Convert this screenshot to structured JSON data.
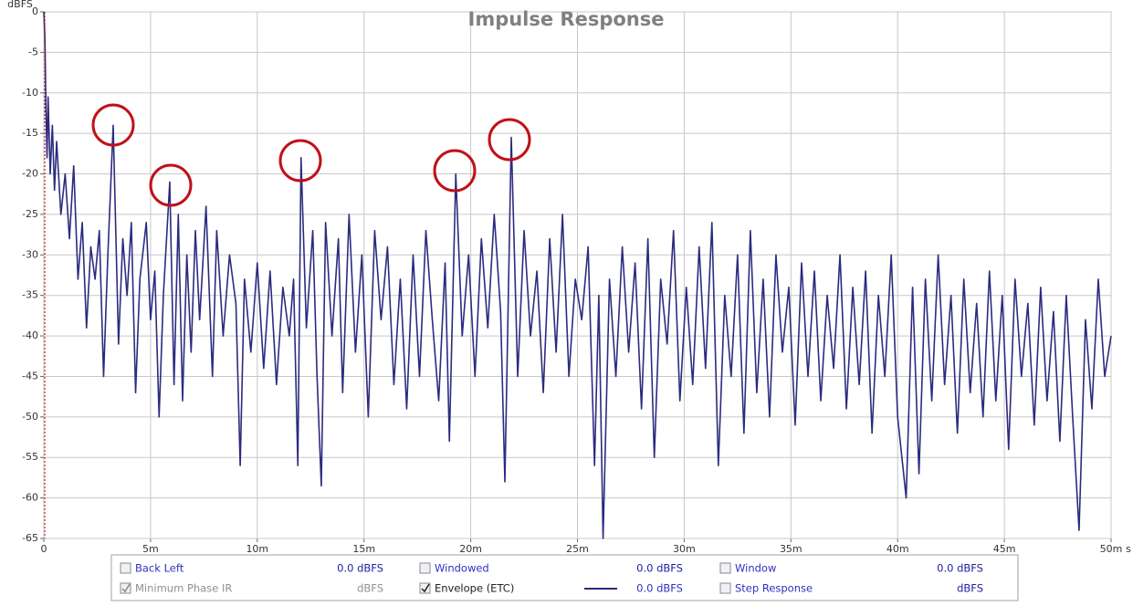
{
  "chart_data": {
    "type": "line",
    "title": "Impulse Response",
    "y_label": "dBFS",
    "x_label": "s",
    "xlim": [
      0,
      0.05
    ],
    "ylim": [
      -65,
      0
    ],
    "xticks": [
      0,
      {
        "value": 0.005,
        "label": "5m"
      },
      {
        "value": 0.01,
        "label": "10m"
      },
      {
        "value": 0.015,
        "label": "15m"
      },
      {
        "value": 0.02,
        "label": "20m"
      },
      {
        "value": 0.025,
        "label": "25m"
      },
      {
        "value": 0.03,
        "label": "30m"
      },
      {
        "value": 0.035,
        "label": "35m"
      },
      {
        "value": 0.04,
        "label": "40m"
      },
      {
        "value": 0.045,
        "label": "45m"
      },
      {
        "value": 0.05,
        "label": "50m"
      }
    ],
    "yticks": [
      0,
      -5,
      -10,
      -15,
      -20,
      -25,
      -30,
      -35,
      -40,
      -45,
      -50,
      -55,
      -60,
      -65
    ],
    "grid": true,
    "series": [
      {
        "name": "Envelope (ETC)",
        "color": "#2b2b80",
        "x": [
          0,
          5e-05,
          0.0001,
          0.00015,
          0.0002,
          0.0003,
          0.0004,
          0.0005,
          0.0006,
          0.0008,
          0.001,
          0.0012,
          0.0014,
          0.0016,
          0.0018,
          0.002,
          0.0022,
          0.0024,
          0.0026,
          0.0028,
          0.003,
          0.00325,
          0.0035,
          0.0037,
          0.0039,
          0.0041,
          0.0043,
          0.0045,
          0.0048,
          0.005,
          0.0052,
          0.0054,
          0.0056,
          0.0059,
          0.0061,
          0.0063,
          0.0065,
          0.0067,
          0.0069,
          0.0071,
          0.0073,
          0.0076,
          0.0079,
          0.0081,
          0.0084,
          0.0087,
          0.009,
          0.0092,
          0.0094,
          0.0097,
          0.01,
          0.0103,
          0.0106,
          0.0109,
          0.0112,
          0.0115,
          0.0117,
          0.0119,
          0.01205,
          0.0123,
          0.0126,
          0.0128,
          0.013,
          0.0132,
          0.0135,
          0.0138,
          0.014,
          0.0143,
          0.0146,
          0.0149,
          0.0152,
          0.0155,
          0.0158,
          0.0161,
          0.0164,
          0.0167,
          0.017,
          0.0173,
          0.0176,
          0.0179,
          0.0182,
          0.0185,
          0.0188,
          0.019,
          0.0193,
          0.0196,
          0.0199,
          0.0202,
          0.0205,
          0.0208,
          0.0211,
          0.0214,
          0.0216,
          0.0219,
          0.0222,
          0.0225,
          0.0228,
          0.0231,
          0.0234,
          0.0237,
          0.024,
          0.0243,
          0.0246,
          0.0249,
          0.0252,
          0.0255,
          0.0258,
          0.026,
          0.0262,
          0.0265,
          0.0268,
          0.0271,
          0.0274,
          0.0277,
          0.028,
          0.0283,
          0.0286,
          0.0289,
          0.0292,
          0.0295,
          0.0298,
          0.0301,
          0.0304,
          0.0307,
          0.031,
          0.0313,
          0.0316,
          0.0319,
          0.0322,
          0.0325,
          0.0328,
          0.0331,
          0.0334,
          0.0337,
          0.034,
          0.0343,
          0.0346,
          0.0349,
          0.0352,
          0.0355,
          0.0358,
          0.0361,
          0.0364,
          0.0367,
          0.037,
          0.0373,
          0.0376,
          0.0379,
          0.0382,
          0.0385,
          0.0388,
          0.0391,
          0.0394,
          0.0397,
          0.04,
          0.0404,
          0.0407,
          0.041,
          0.0413,
          0.0416,
          0.0419,
          0.0422,
          0.0425,
          0.0428,
          0.0431,
          0.0434,
          0.0437,
          0.044,
          0.0443,
          0.0446,
          0.0449,
          0.0452,
          0.0455,
          0.0458,
          0.0461,
          0.0464,
          0.0467,
          0.047,
          0.0473,
          0.0476,
          0.0479,
          0.0482,
          0.0485,
          0.0488,
          0.0491,
          0.0494,
          0.0497,
          0.05
        ],
        "values": [
          0,
          -3,
          -12,
          -18,
          -10.5,
          -20,
          -14,
          -22,
          -16,
          -25,
          -20,
          -28,
          -19,
          -33,
          -26,
          -39,
          -29,
          -33,
          -27,
          -45,
          -30,
          -14,
          -41,
          -28,
          -35,
          -26,
          -47,
          -33,
          -26,
          -38,
          -32,
          -50,
          -35,
          -21,
          -46,
          -25,
          -48,
          -30,
          -42,
          -27,
          -38,
          -24,
          -45,
          -27,
          -40,
          -30,
          -36,
          -56,
          -33,
          -42,
          -31,
          -44,
          -32,
          -46,
          -34,
          -40,
          -33,
          -56,
          -18,
          -39,
          -27,
          -45,
          -58.5,
          -26,
          -40,
          -28,
          -47,
          -25,
          -42,
          -30,
          -50,
          -27,
          -38,
          -29,
          -46,
          -33,
          -49,
          -30,
          -45,
          -27,
          -38,
          -48,
          -31,
          -53,
          -20,
          -40,
          -30,
          -45,
          -28,
          -39,
          -25,
          -37,
          -58,
          -15.5,
          -45,
          -27,
          -40,
          -32,
          -47,
          -28,
          -42,
          -25,
          -45,
          -33,
          -38,
          -29,
          -56,
          -35,
          -65,
          -33,
          -45,
          -29,
          -42,
          -31,
          -49,
          -28,
          -55,
          -33,
          -41,
          -27,
          -48,
          -34,
          -46,
          -29,
          -44,
          -26,
          -56,
          -35,
          -45,
          -30,
          -52,
          -27,
          -47,
          -33,
          -50,
          -30,
          -42,
          -34,
          -51,
          -31,
          -45,
          -32,
          -48,
          -35,
          -44,
          -30,
          -49,
          -34,
          -46,
          -32,
          -52,
          -35,
          -45,
          -30,
          -50,
          -60,
          -34,
          -57,
          -33,
          -48,
          -30,
          -46,
          -35,
          -52,
          -33,
          -47,
          -36,
          -50,
          -32,
          -48,
          -35,
          -54,
          -33,
          -45,
          -36,
          -51,
          -34,
          -48,
          -37,
          -53,
          -35,
          -50,
          -64,
          -38,
          -49,
          -33,
          -45,
          -40
        ]
      }
    ]
  },
  "legend": {
    "rows": [
      [
        {
          "label": "Back Left",
          "value": "0.0 dBFS",
          "checked": false,
          "enabled": true
        },
        {
          "label": "Windowed",
          "value": "0.0 dBFS",
          "checked": false,
          "enabled": true
        },
        {
          "label": "Window",
          "value": "0.0 dBFS",
          "checked": false,
          "enabled": true
        }
      ],
      [
        {
          "label": "Minimum Phase IR",
          "value": "dBFS",
          "checked": true,
          "enabled": false
        },
        {
          "label": "Envelope (ETC)",
          "value": "0.0 dBFS",
          "checked": true,
          "enabled": true,
          "line": true
        },
        {
          "label": "Step Response",
          "value": "dBFS",
          "checked": false,
          "enabled": true
        }
      ]
    ]
  }
}
